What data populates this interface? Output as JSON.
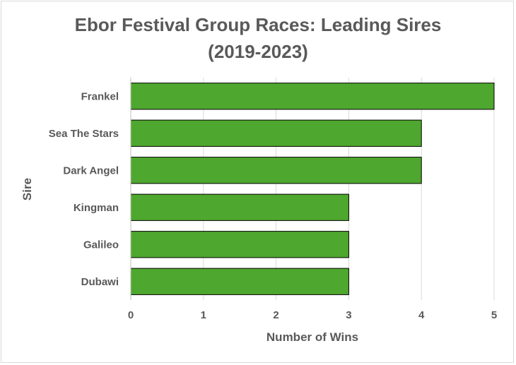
{
  "chart_data": {
    "type": "bar",
    "orientation": "horizontal",
    "title_lines": [
      "Ebor Festival Group Races: Leading Sires",
      "(2019-2023)"
    ],
    "xlabel": "Number of Wins",
    "ylabel": "Sire",
    "categories": [
      "Frankel",
      "Sea The Stars",
      "Dark Angel",
      "Kingman",
      "Galileo",
      "Dubawi"
    ],
    "values": [
      5,
      4,
      4,
      3,
      3,
      3
    ],
    "xlim": [
      0,
      5
    ],
    "xticks": [
      0,
      1,
      2,
      3,
      4,
      5
    ],
    "grid": "vertical",
    "bar_color": "#4ea72e",
    "bar_edge_color": "#000000"
  }
}
